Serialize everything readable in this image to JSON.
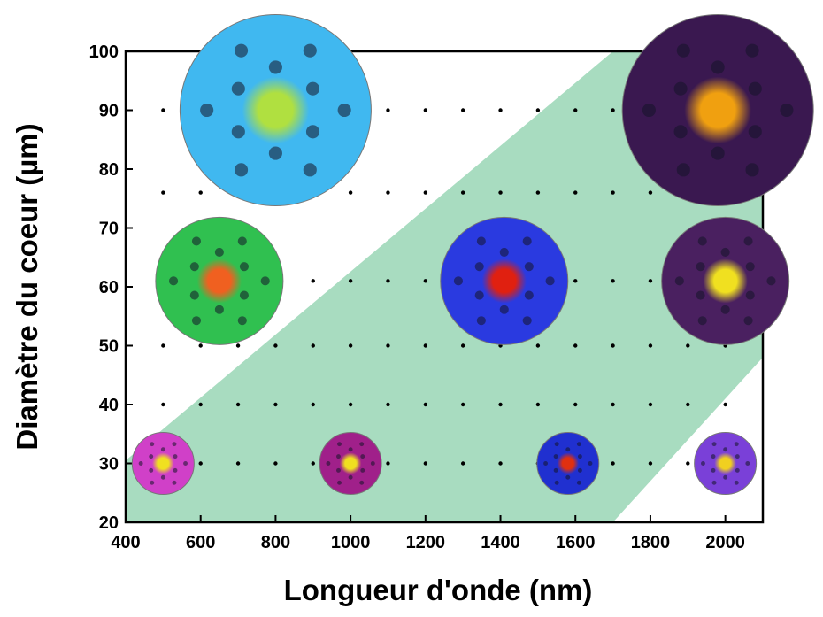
{
  "chart_data": {
    "type": "scatter",
    "x_label": "Longueur d'onde (nm)",
    "y_label": "Diamètre du coeur (µm)",
    "xlim": [
      400,
      2100
    ],
    "xticks": [
      400,
      600,
      800,
      1000,
      1200,
      1400,
      1600,
      1800,
      2000
    ],
    "ylim": [
      20,
      100
    ],
    "yticks": [
      20,
      30,
      40,
      50,
      60,
      70,
      80,
      90,
      100
    ],
    "dot_columns": [
      500,
      600,
      700,
      800,
      900,
      1000,
      1100,
      1200,
      1300,
      1400,
      1500,
      1600,
      1700,
      1800,
      1900,
      2000
    ],
    "dot_rows": [
      90,
      76,
      61,
      50,
      40,
      30
    ],
    "dot_color": "#000000",
    "region": {
      "color": "#a8dcc0",
      "x": [
        400,
        400,
        1700,
        2100,
        2100,
        1700
      ],
      "y": [
        20,
        30.5,
        100,
        100,
        48,
        20
      ]
    },
    "insets": {
      "x": [
        500,
        1000,
        1580,
        2000,
        650,
        1410,
        2000,
        800,
        1980
      ],
      "y": [
        30,
        30,
        30,
        30,
        61,
        61,
        61,
        90,
        90
      ],
      "bg": [
        "#d040c8",
        "#a0208a",
        "#2030d0",
        "#7a40d8",
        "#30c050",
        "#2a3ae0",
        "#4a2060",
        "#40b8f0",
        "#3a1850"
      ],
      "core": [
        "#f0e020",
        "#f0e020",
        "#e03010",
        "#f0d020",
        "#f06020",
        "#e02010",
        "#f0e020",
        "#b0e040",
        "#f0a010"
      ]
    }
  }
}
